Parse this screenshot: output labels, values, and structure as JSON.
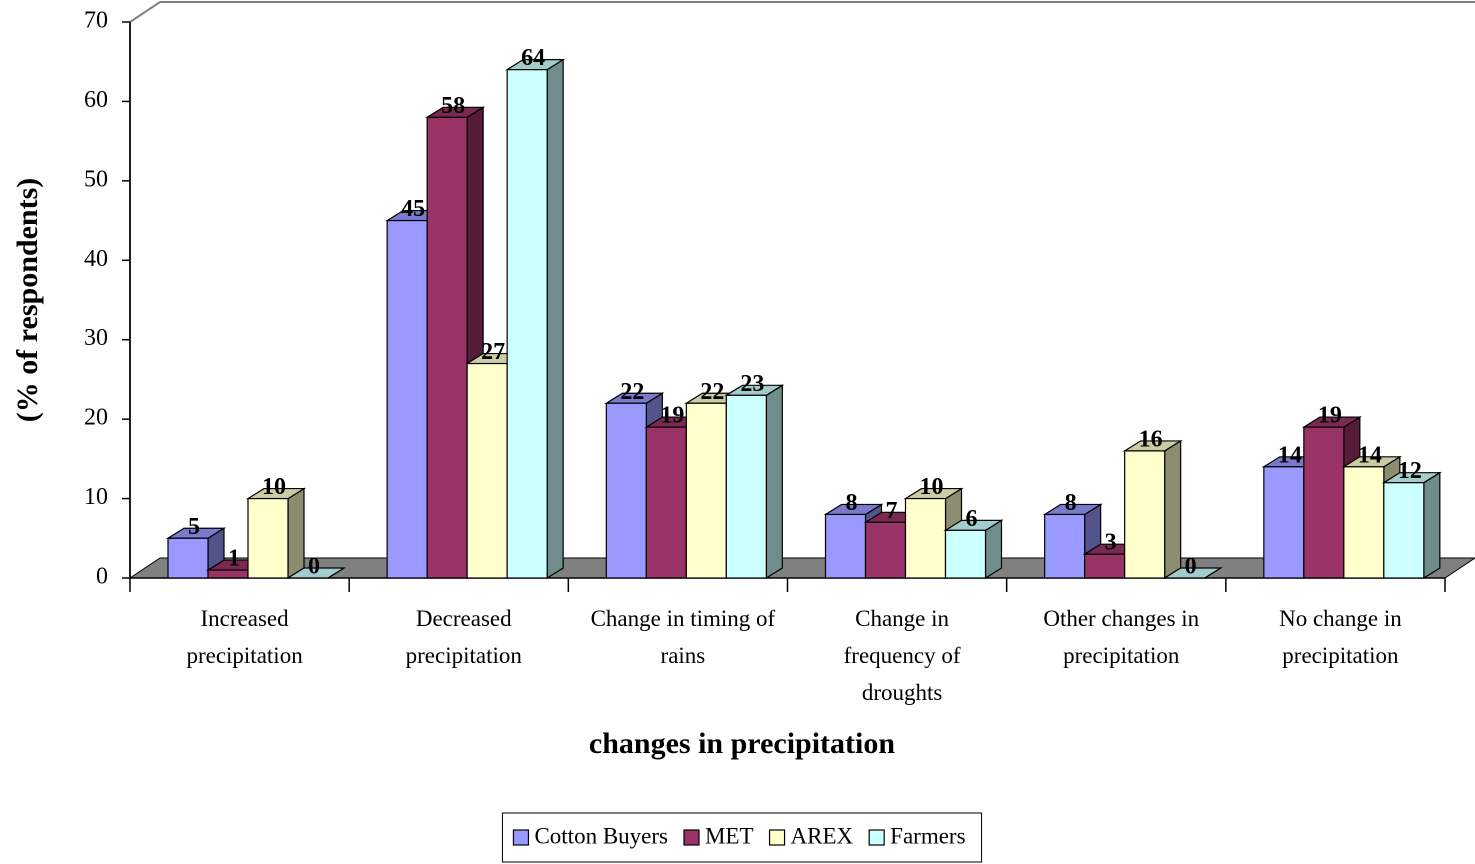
{
  "chart_data": {
    "type": "bar3d",
    "x_label": "changes in precipitation",
    "y_label": "(% of respondents)",
    "categories": [
      "Increased precipitation",
      "Decreased precipitation",
      "Change in timing of rains",
      "Change in frequency of droughts",
      "Other changes in precipitation",
      "No change in precipitation"
    ],
    "series": [
      {
        "name": "Cotton Buyers",
        "color": "#9999ff",
        "values": [
          5,
          45,
          22,
          8,
          8,
          14
        ]
      },
      {
        "name": "MET",
        "color": "#993366",
        "values": [
          1,
          58,
          19,
          7,
          3,
          19
        ]
      },
      {
        "name": "AREX",
        "color": "#ffffcc",
        "values": [
          10,
          27,
          22,
          10,
          16,
          14
        ]
      },
      {
        "name": "Farmers",
        "color": "#ccffff",
        "values": [
          0,
          64,
          23,
          6,
          0,
          12
        ]
      }
    ],
    "ylim": [
      0,
      70
    ],
    "yticks": [
      0,
      10,
      20,
      30,
      40,
      50,
      60,
      70
    ],
    "floor_color": "#808080",
    "legend": "bottom"
  }
}
